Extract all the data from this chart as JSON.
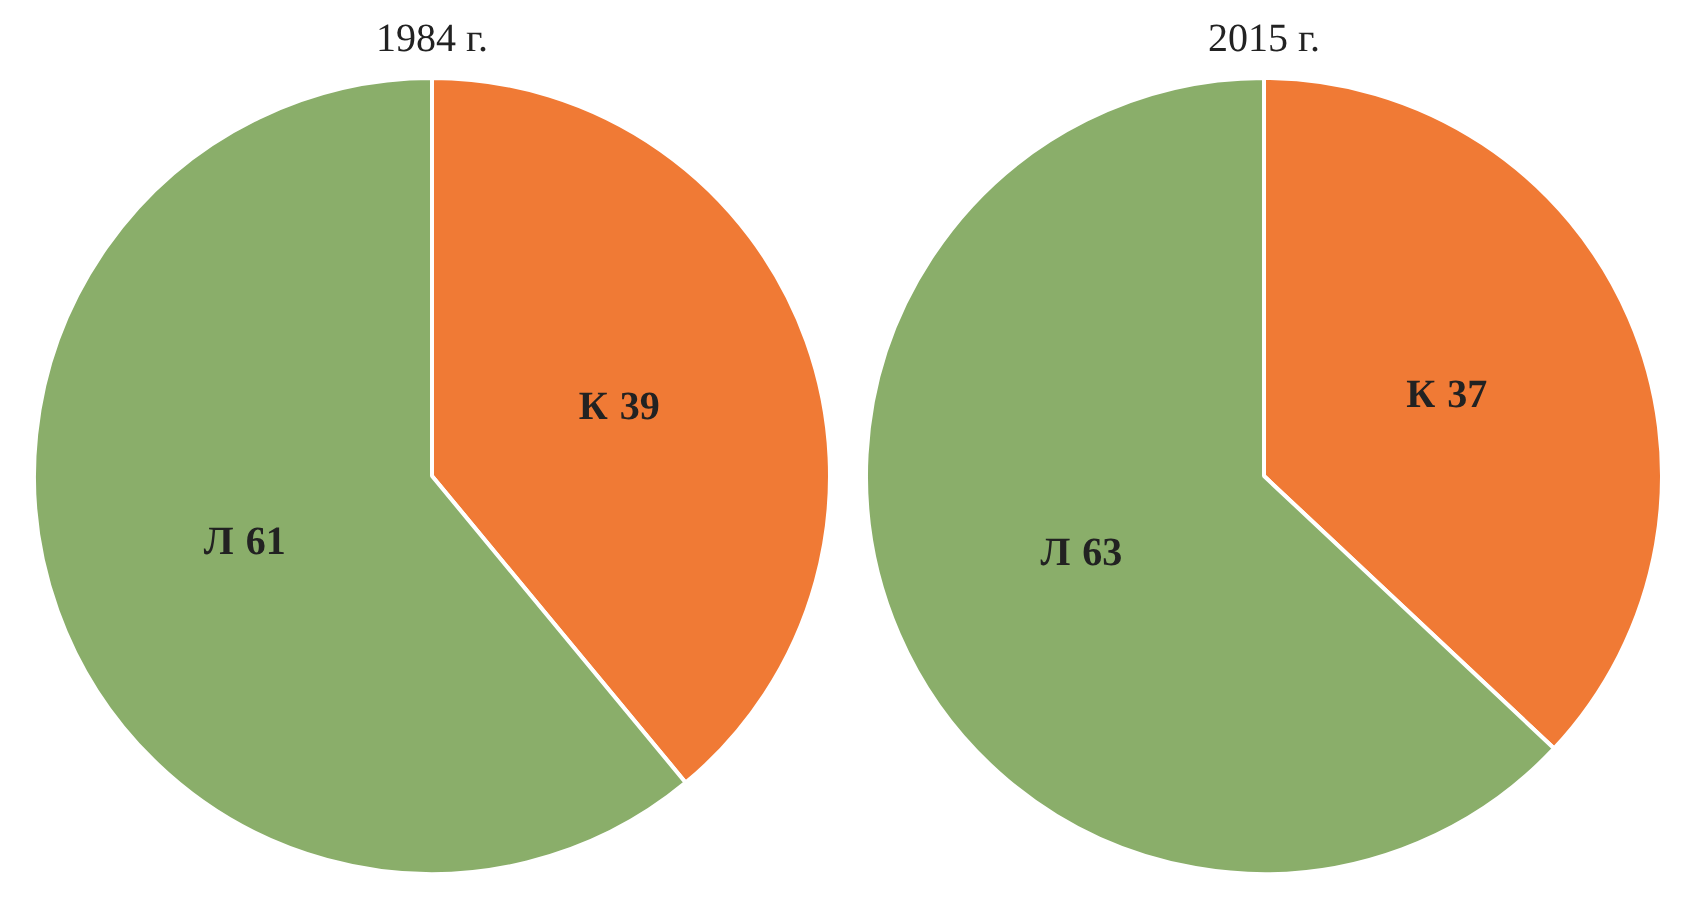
{
  "chart_data": [
    {
      "type": "pie",
      "title": "1984 г.",
      "categories": [
        "К",
        "Л"
      ],
      "values": [
        39,
        61
      ],
      "colors": [
        "#f07a35",
        "#8aae6a"
      ],
      "data_labels": true,
      "legend": false
    },
    {
      "type": "pie",
      "title": "2015 г.",
      "categories": [
        "К",
        "Л"
      ],
      "values": [
        37,
        63
      ],
      "colors": [
        "#f07a35",
        "#8aae6a"
      ],
      "data_labels": true,
      "legend": false
    }
  ]
}
